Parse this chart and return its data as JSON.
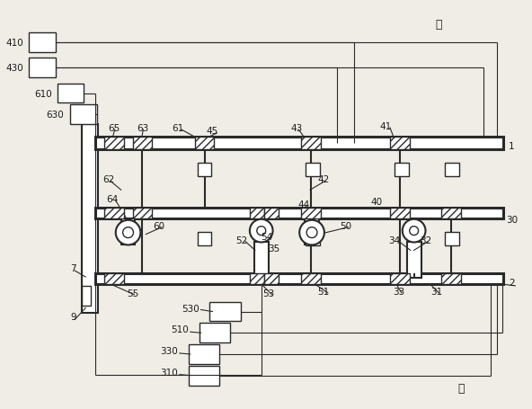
{
  "bg_color": "#f0ede6",
  "line_color": "#2a2a2a",
  "text_color": "#1a1a1a",
  "figsize": [
    5.92,
    4.56
  ],
  "dpi": 100
}
